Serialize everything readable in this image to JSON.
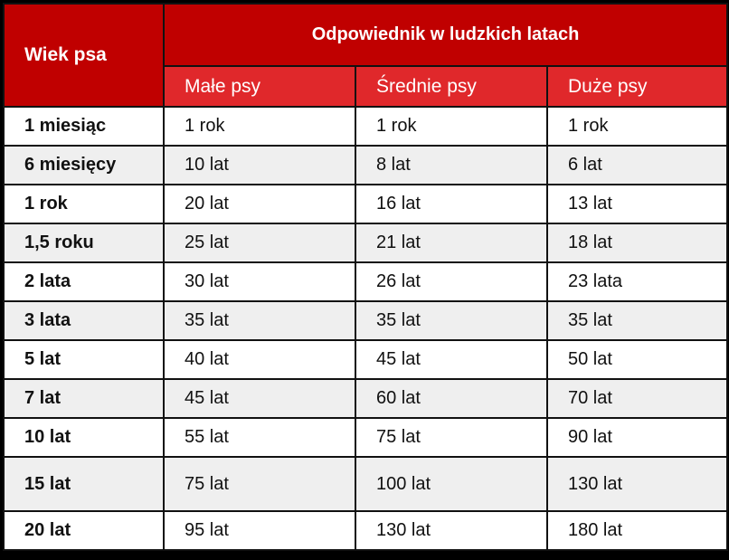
{
  "header": {
    "age_label": "Wiek psa",
    "group_label": "Odpowiednik w ludzkich latach",
    "columns": [
      "Małe psy",
      "Średnie psy",
      "Duże psy"
    ]
  },
  "rows": [
    {
      "age": "1 miesiąc",
      "small": "1 rok",
      "medium": "1 rok",
      "large": "1 rok"
    },
    {
      "age": "6 miesięcy",
      "small": "10 lat",
      "medium": "8 lat",
      "large": "6 lat"
    },
    {
      "age": "1 rok",
      "small": "20 lat",
      "medium": "16 lat",
      "large": "13 lat"
    },
    {
      "age": "1,5 roku",
      "small": "25 lat",
      "medium": "21 lat",
      "large": "18 lat"
    },
    {
      "age": "2 lata",
      "small": "30 lat",
      "medium": "26 lat",
      "large": "23 lata"
    },
    {
      "age": "3 lata",
      "small": "35 lat",
      "medium": "35 lat",
      "large": "35 lat"
    },
    {
      "age": "5 lat",
      "small": "40 lat",
      "medium": "45 lat",
      "large": "50 lat"
    },
    {
      "age": "7 lat",
      "small": "45 lat",
      "medium": "60 lat",
      "large": "70 lat"
    },
    {
      "age": "10 lat",
      "small": "55 lat",
      "medium": "75 lat",
      "large": "90 lat"
    },
    {
      "age": "15 lat",
      "small": "75 lat",
      "medium": "100 lat",
      "large": "130 lat"
    },
    {
      "age": "20 lat",
      "small": "95 lat",
      "medium": "130 lat",
      "large": "180 lat"
    }
  ],
  "colors": {
    "header": "#c00000",
    "subheader": "#e0282b",
    "alt_row": "#efefef"
  }
}
